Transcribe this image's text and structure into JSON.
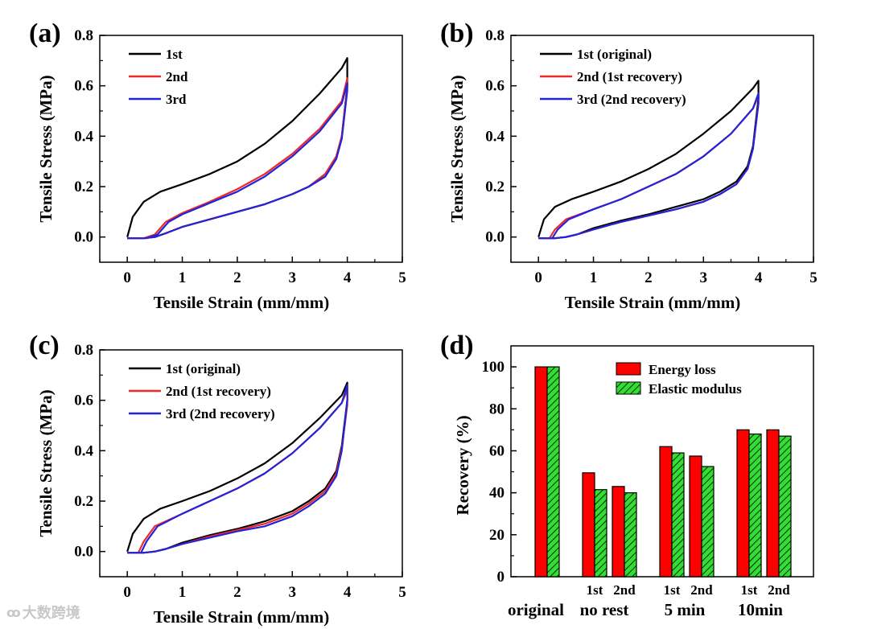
{
  "watermark": {
    "logo_glyph": "ꝏ",
    "text": "大数跨境"
  },
  "chart_data": [
    {
      "panel": "(a)",
      "type": "line",
      "xlabel": "Tensile Strain (mm/mm)",
      "ylabel": "Tensile Stress (MPa)",
      "xlim": [
        -0.5,
        5
      ],
      "ylim": [
        -0.1,
        0.8
      ],
      "xticks": [
        0,
        1,
        2,
        3,
        4,
        5
      ],
      "yticks": [
        "0.0",
        "0.2",
        "0.4",
        "0.6",
        "0.8"
      ],
      "legend_position": "top-left",
      "series": [
        {
          "name": "1st",
          "color": "#000000",
          "x": [
            0,
            0.1,
            0.3,
            0.6,
            1.0,
            1.5,
            2.0,
            2.5,
            3.0,
            3.5,
            3.9,
            4.0,
            4.0,
            3.9,
            3.8,
            3.6,
            3.3,
            3.0,
            2.5,
            2.0,
            1.5,
            1.0,
            0.7,
            0.5,
            0.3,
            0
          ],
          "y": [
            0,
            0.08,
            0.14,
            0.18,
            0.21,
            0.25,
            0.3,
            0.37,
            0.46,
            0.57,
            0.67,
            0.71,
            0.6,
            0.4,
            0.32,
            0.25,
            0.2,
            0.17,
            0.13,
            0.1,
            0.07,
            0.04,
            0.015,
            0.0,
            -0.005,
            -0.005
          ]
        },
        {
          "name": "2nd",
          "color": "#ee2b2b",
          "x": [
            0,
            0.3,
            0.5,
            0.7,
            1.0,
            1.5,
            2.0,
            2.5,
            3.0,
            3.5,
            3.9,
            4.0,
            4.0,
            3.9,
            3.8,
            3.6,
            3.3,
            3.0,
            2.5,
            2.0,
            1.5,
            1.0,
            0.7,
            0.5,
            0.3,
            0
          ],
          "y": [
            -0.005,
            -0.005,
            0.01,
            0.06,
            0.095,
            0.14,
            0.19,
            0.25,
            0.33,
            0.43,
            0.54,
            0.63,
            0.6,
            0.4,
            0.32,
            0.25,
            0.2,
            0.17,
            0.13,
            0.1,
            0.07,
            0.04,
            0.015,
            0.0,
            -0.005,
            -0.005
          ]
        },
        {
          "name": "3rd",
          "color": "#2323d8",
          "x": [
            0,
            0.35,
            0.55,
            0.75,
            1.0,
            1.5,
            2.0,
            2.5,
            3.0,
            3.5,
            3.9,
            4.0,
            4.0,
            3.9,
            3.8,
            3.6,
            3.3,
            3.0,
            2.5,
            2.0,
            1.5,
            1.0,
            0.7,
            0.5,
            0.3,
            0
          ],
          "y": [
            -0.005,
            -0.005,
            0.01,
            0.06,
            0.09,
            0.135,
            0.18,
            0.24,
            0.32,
            0.42,
            0.53,
            0.61,
            0.58,
            0.39,
            0.31,
            0.24,
            0.2,
            0.17,
            0.13,
            0.1,
            0.07,
            0.04,
            0.015,
            0.0,
            -0.005,
            -0.005
          ]
        }
      ]
    },
    {
      "panel": "(b)",
      "type": "line",
      "xlabel": "Tensile Strain (mm/mm)",
      "ylabel": "Tensile Stress (MPa)",
      "xlim": [
        -0.5,
        5
      ],
      "ylim": [
        -0.1,
        0.8
      ],
      "xticks": [
        0,
        1,
        2,
        3,
        4,
        5
      ],
      "yticks": [
        "0.0",
        "0.2",
        "0.4",
        "0.6",
        "0.8"
      ],
      "legend_position": "top-left",
      "series": [
        {
          "name": "1st (original)",
          "color": "#000000",
          "x": [
            0,
            0.1,
            0.3,
            0.6,
            1.0,
            1.5,
            2.0,
            2.5,
            3.0,
            3.5,
            3.9,
            4.0,
            4.0,
            3.9,
            3.8,
            3.6,
            3.3,
            3.0,
            2.5,
            2.0,
            1.5,
            1.0,
            0.7,
            0.5,
            0.3,
            0
          ],
          "y": [
            0,
            0.07,
            0.12,
            0.15,
            0.18,
            0.22,
            0.27,
            0.33,
            0.41,
            0.5,
            0.59,
            0.62,
            0.55,
            0.36,
            0.28,
            0.22,
            0.18,
            0.15,
            0.12,
            0.09,
            0.065,
            0.035,
            0.01,
            0.0,
            -0.005,
            -0.005
          ]
        },
        {
          "name": "2nd (1st recovery)",
          "color": "#ee2b2b",
          "x": [
            0,
            0.2,
            0.3,
            0.5,
            1.0,
            1.5,
            2.0,
            2.5,
            3.0,
            3.5,
            3.9,
            4.0,
            4.0,
            3.9,
            3.8,
            3.6,
            3.3,
            3.0,
            2.5,
            2.0,
            1.5,
            1.0,
            0.7,
            0.5,
            0.3,
            0
          ],
          "y": [
            -0.005,
            -0.005,
            0.03,
            0.07,
            0.11,
            0.15,
            0.2,
            0.25,
            0.32,
            0.41,
            0.51,
            0.56,
            0.53,
            0.35,
            0.27,
            0.21,
            0.17,
            0.14,
            0.11,
            0.085,
            0.06,
            0.03,
            0.01,
            0.0,
            -0.005,
            -0.005
          ]
        },
        {
          "name": "3rd (2nd recovery)",
          "color": "#2323d8",
          "x": [
            0,
            0.25,
            0.35,
            0.55,
            1.0,
            1.5,
            2.0,
            2.5,
            3.0,
            3.5,
            3.9,
            4.0,
            4.0,
            3.9,
            3.8,
            3.6,
            3.3,
            3.0,
            2.5,
            2.0,
            1.5,
            1.0,
            0.7,
            0.5,
            0.3,
            0
          ],
          "y": [
            -0.005,
            -0.005,
            0.03,
            0.07,
            0.11,
            0.15,
            0.2,
            0.25,
            0.32,
            0.41,
            0.51,
            0.57,
            0.53,
            0.35,
            0.27,
            0.21,
            0.17,
            0.14,
            0.11,
            0.085,
            0.06,
            0.03,
            0.01,
            0.0,
            -0.005,
            -0.005
          ]
        }
      ]
    },
    {
      "panel": "(c)",
      "type": "line",
      "xlabel": "Tensile Strain (mm/mm)",
      "ylabel": "Tensile Stress (MPa)",
      "xlim": [
        -0.5,
        5
      ],
      "ylim": [
        -0.1,
        0.8
      ],
      "xticks": [
        0,
        1,
        2,
        3,
        4,
        5
      ],
      "yticks": [
        "0.0",
        "0.2",
        "0.4",
        "0.6",
        "0.8"
      ],
      "legend_position": "top-left",
      "series": [
        {
          "name": "1st (original)",
          "color": "#000000",
          "x": [
            0,
            0.1,
            0.3,
            0.6,
            1.0,
            1.5,
            2.0,
            2.5,
            3.0,
            3.5,
            3.9,
            4.0,
            4.0,
            3.9,
            3.8,
            3.6,
            3.3,
            3.0,
            2.5,
            2.0,
            1.5,
            1.0,
            0.7,
            0.5,
            0.3,
            0
          ],
          "y": [
            0,
            0.07,
            0.13,
            0.17,
            0.2,
            0.24,
            0.29,
            0.35,
            0.43,
            0.53,
            0.62,
            0.67,
            0.6,
            0.42,
            0.32,
            0.25,
            0.2,
            0.16,
            0.12,
            0.09,
            0.065,
            0.035,
            0.01,
            0.0,
            -0.005,
            -0.005
          ]
        },
        {
          "name": "2nd (1st recovery)",
          "color": "#ee2b2b",
          "x": [
            0,
            0.2,
            0.3,
            0.5,
            1.0,
            1.5,
            2.0,
            2.5,
            3.0,
            3.5,
            3.9,
            4.0,
            4.0,
            3.9,
            3.8,
            3.6,
            3.3,
            3.0,
            2.5,
            2.0,
            1.5,
            1.0,
            0.7,
            0.5,
            0.3,
            0
          ],
          "y": [
            -0.005,
            -0.005,
            0.04,
            0.1,
            0.15,
            0.2,
            0.25,
            0.31,
            0.39,
            0.49,
            0.59,
            0.64,
            0.58,
            0.41,
            0.31,
            0.24,
            0.19,
            0.15,
            0.11,
            0.085,
            0.06,
            0.03,
            0.01,
            0.0,
            -0.005,
            -0.005
          ]
        },
        {
          "name": "3rd (2nd recovery)",
          "color": "#2323d8",
          "x": [
            0,
            0.25,
            0.35,
            0.55,
            1.0,
            1.5,
            2.0,
            2.5,
            3.0,
            3.5,
            3.9,
            4.0,
            4.0,
            3.9,
            3.8,
            3.6,
            3.3,
            3.0,
            2.5,
            2.0,
            1.5,
            1.0,
            0.7,
            0.5,
            0.3,
            0
          ],
          "y": [
            -0.005,
            -0.005,
            0.04,
            0.1,
            0.15,
            0.2,
            0.25,
            0.31,
            0.39,
            0.49,
            0.59,
            0.66,
            0.6,
            0.4,
            0.3,
            0.23,
            0.18,
            0.14,
            0.1,
            0.08,
            0.055,
            0.03,
            0.01,
            0.0,
            -0.005,
            -0.005
          ]
        }
      ]
    },
    {
      "panel": "(d)",
      "type": "bar",
      "ylabel": "Recovery (%)",
      "ylim": [
        0,
        110
      ],
      "yticks": [
        "0",
        "20",
        "40",
        "60",
        "80",
        "100"
      ],
      "legend_position": "top-right",
      "series": [
        {
          "name": "Energy loss",
          "color": "#ff0000",
          "hatch": false
        },
        {
          "name": "Elastic modulus",
          "color": "#33dd33",
          "hatch": true
        }
      ],
      "groups": [
        {
          "label": "original",
          "bars": [
            {
              "sub": "",
              "values": [
                100,
                100
              ]
            }
          ]
        },
        {
          "label": "no rest",
          "bars": [
            {
              "sub": "1st",
              "values": [
                49.5,
                41.5
              ]
            },
            {
              "sub": "2nd",
              "values": [
                43,
                40
              ]
            }
          ]
        },
        {
          "label": "5 min",
          "bars": [
            {
              "sub": "1st",
              "values": [
                62,
                59
              ]
            },
            {
              "sub": "2nd",
              "values": [
                57.5,
                52.5
              ]
            }
          ]
        },
        {
          "label": "10min",
          "bars": [
            {
              "sub": "1st",
              "values": [
                70,
                68
              ]
            },
            {
              "sub": "2nd",
              "values": [
                70,
                67
              ]
            }
          ]
        }
      ]
    }
  ]
}
